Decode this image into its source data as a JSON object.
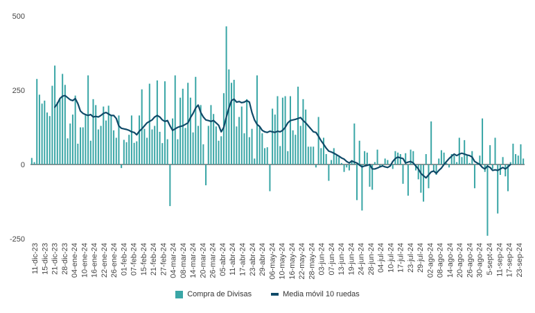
{
  "chart_data": {
    "type": "bar",
    "y_ticks": [
      500,
      250,
      0,
      -250
    ],
    "ylim": [
      -250,
      500
    ],
    "x_tick_labels": [
      "11-dic-23",
      "15-dic-23",
      "21-dic-23",
      "28-dic-23",
      "04-ene-24",
      "10-ene-24",
      "16-ene-24",
      "22-ene-24",
      "26-ene-24",
      "01-feb-24",
      "07-feb-24",
      "15-feb-24",
      "21-feb-24",
      "27-feb-24",
      "04-mar-24",
      "08-mar-24",
      "14-mar-24",
      "20-mar-24",
      "26-mar-24",
      "05-abr-24",
      "11-abr-24",
      "17-abr-24",
      "23-abr-24",
      "29-abr-24",
      "06-may-24",
      "10-may-24",
      "16-may-24",
      "22-may-24",
      "28-may-24",
      "03-jun-24",
      "07-jun-24",
      "13-jun-24",
      "19-jun-24",
      "24-jun-24",
      "28-jun-24",
      "04-jul-24",
      "10-jul-24",
      "17-jul-24",
      "23-jul-24",
      "29-jul-24",
      "02-ago-24",
      "08-ago-24",
      "14-ago-24",
      "20-ago-24",
      "26-ago-24",
      "30-ago-24",
      "5-sept-24",
      "11-sep-24",
      "17-sep-24",
      "23-sep-24"
    ],
    "series": [
      {
        "name": "Compra de Divisas",
        "kind": "bar",
        "color": "#3aa6a6",
        "values": [
          22,
          8,
          288,
          235,
          205,
          215,
          175,
          163,
          265,
          333,
          210,
          223,
          305,
          268,
          88,
          138,
          168,
          232,
          70,
          125,
          125,
          168,
          300,
          80,
          220,
          200,
          118,
          130,
          195,
          148,
          198,
          165,
          115,
          90,
          165,
          -12,
          83,
          75,
          100,
          165,
          73,
          78,
          165,
          253,
          120,
          90,
          272,
          118,
          130,
          283,
          110,
          72,
          280,
          85,
          -140,
          155,
          300,
          85,
          225,
          255,
          123,
          275,
          225,
          108,
          295,
          130,
          200,
          68,
          -70,
          130,
          200,
          170,
          128,
          80,
          95,
          240,
          465,
          320,
          275,
          285,
          128,
          160,
          195,
          105,
          220,
          92,
          120,
          20,
          300,
          125,
          105,
          55,
          58,
          -90,
          188,
          168,
          230,
          62,
          225,
          230,
          45,
          230,
          115,
          100,
          262,
          130,
          220,
          185,
          60,
          60,
          60,
          -10,
          160,
          55,
          90,
          35,
          -55,
          15,
          55,
          30,
          25,
          5,
          -25,
          -10,
          -20,
          15,
          138,
          -120,
          80,
          -155,
          45,
          40,
          -75,
          -85,
          8,
          50,
          -10,
          -5,
          20,
          15,
          -5,
          -15,
          45,
          40,
          35,
          -65,
          38,
          -105,
          50,
          45,
          -20,
          -50,
          -95,
          -125,
          35,
          -80,
          145,
          -20,
          -35,
          20,
          48,
          40,
          5,
          -10,
          35,
          30,
          8,
          90,
          25,
          82,
          30,
          5,
          45,
          -80,
          5,
          30,
          155,
          -25,
          -240,
          65,
          -15,
          90,
          -165,
          -35,
          25,
          -40,
          -90,
          8,
          70,
          35,
          30,
          68,
          20
        ]
      },
      {
        "name": "Media móvil 10 ruedas",
        "kind": "line",
        "color": "#0f4a68",
        "values": [
          null,
          null,
          null,
          null,
          null,
          null,
          null,
          null,
          null,
          193,
          205,
          222,
          230,
          232,
          225,
          218,
          215,
          222,
          205,
          180,
          172,
          168,
          165,
          168,
          160,
          162,
          160,
          165,
          172,
          175,
          170,
          165,
          165,
          155,
          130,
          122,
          120,
          118,
          115,
          110,
          108,
          100,
          112,
          120,
          130,
          140,
          145,
          150,
          160,
          165,
          160,
          150,
          145,
          148,
          130,
          115,
          120,
          125,
          128,
          130,
          135,
          140,
          158,
          172,
          190,
          200,
          175,
          160,
          150,
          148,
          145,
          148,
          140,
          132,
          110,
          125,
          160,
          190,
          215,
          220,
          210,
          212,
          208,
          210,
          215,
          210,
          175,
          150,
          135,
          128,
          115,
          110,
          108,
          112,
          110,
          108,
          112,
          110,
          115,
          125,
          140,
          148,
          150,
          152,
          155,
          158,
          148,
          140,
          130,
          120,
          110,
          108,
          95,
          80,
          68,
          55,
          45,
          42,
          38,
          33,
          28,
          22,
          18,
          10,
          5,
          12,
          8,
          5,
          -2,
          -8,
          -5,
          -3,
          0,
          -15,
          -15,
          -12,
          -8,
          -5,
          -8,
          -10,
          -5,
          10,
          20,
          25,
          22,
          20,
          5,
          8,
          10,
          5,
          -5,
          -15,
          -30,
          -38,
          -45,
          -35,
          -25,
          -22,
          -30,
          -20,
          -12,
          0,
          10,
          20,
          28,
          35,
          30,
          35,
          38,
          35,
          32,
          30,
          25,
          10,
          5,
          0,
          -10,
          -15,
          -5,
          -10,
          -20,
          -18,
          -20,
          -15,
          -10,
          -15,
          -8,
          0
        ]
      }
    ]
  }
}
